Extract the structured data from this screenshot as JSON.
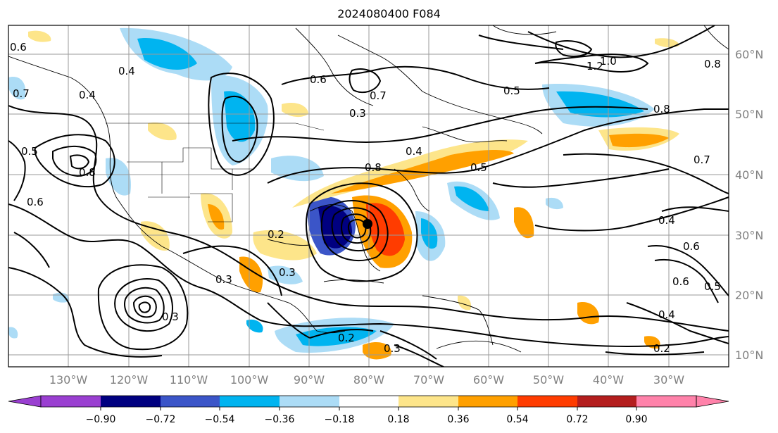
{
  "title": "2024080400 F084",
  "lon_labels": [
    "130°W",
    "120°W",
    "110°W",
    "100°W",
    "90°W",
    "80°W",
    "70°W",
    "60°W",
    "50°W",
    "40°W",
    "30°W"
  ],
  "lat_labels": [
    "60°N",
    "50°N",
    "40°N",
    "30°N",
    "20°N",
    "10°N"
  ],
  "colorbar": {
    "ticks": [
      "−0.90",
      "−0.72",
      "−0.54",
      "−0.36",
      "−0.18",
      "0.18",
      "0.36",
      "0.54",
      "0.72",
      "0.90"
    ],
    "colors": [
      "#9a3fd1",
      "#000080",
      "#3b55c8",
      "#00b4f0",
      "#acdcf6",
      "#ffffff",
      "#fde58a",
      "#ffa000",
      "#ff3c00",
      "#b41e1e",
      "#ff82aa"
    ]
  },
  "contour_labels": [
    "0.6",
    "0.4",
    "0.7",
    "0.4",
    "0.5",
    "0.8",
    "0.6",
    "0.3",
    "0.6",
    "0.7",
    "0.5",
    "0.8",
    "1.2",
    "1.0",
    "0.8",
    "0.8",
    "0.5",
    "0.4",
    "0.7",
    "0.4",
    "0.6",
    "0.6",
    "0.5",
    "0.3",
    "0.3",
    "0.2",
    "0.3",
    "0.2",
    "0.3",
    "0.4",
    "0.2"
  ]
}
